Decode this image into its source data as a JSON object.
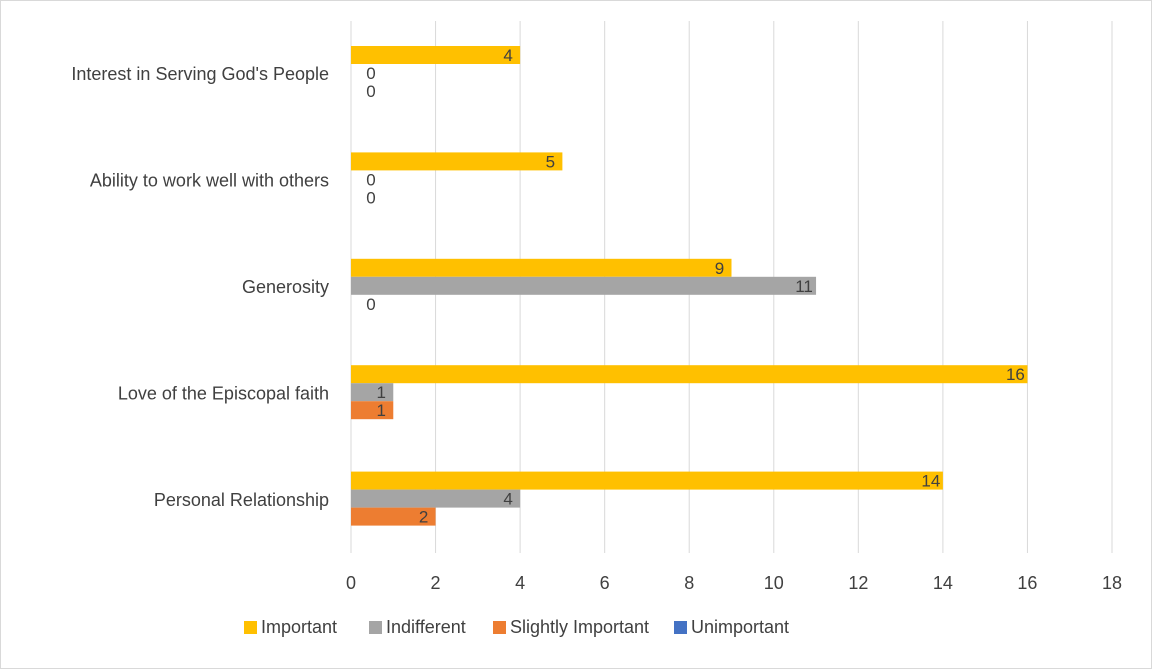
{
  "chart_data": {
    "type": "bar",
    "orientation": "horizontal",
    "categories": [
      "Interest in Serving God's People",
      "Ability to work well with others",
      "Generosity",
      "Love of the Episcopal faith",
      "Personal Relationship"
    ],
    "series": [
      {
        "name": "Important",
        "color": "#FFC000",
        "values": [
          4,
          5,
          9,
          16,
          14
        ]
      },
      {
        "name": "Indifferent",
        "color": "#A5A5A5",
        "values": [
          0,
          0,
          11,
          1,
          4
        ]
      },
      {
        "name": "Slightly Important",
        "color": "#ED7D31",
        "values": [
          0,
          0,
          0,
          1,
          2
        ]
      },
      {
        "name": "Unimportant",
        "color": "#4472C4",
        "values": [
          0,
          0,
          0,
          0,
          0
        ]
      }
    ],
    "xlim": [
      0,
      18
    ],
    "xticks": [
      0,
      2,
      4,
      6,
      8,
      10,
      12,
      14,
      16,
      18
    ],
    "xtick_labels": [
      "0",
      "2",
      "4",
      "6",
      "8",
      "10",
      "12",
      "14",
      "16",
      "18"
    ],
    "grid": true,
    "data_labels": true,
    "legend_position": "bottom"
  }
}
